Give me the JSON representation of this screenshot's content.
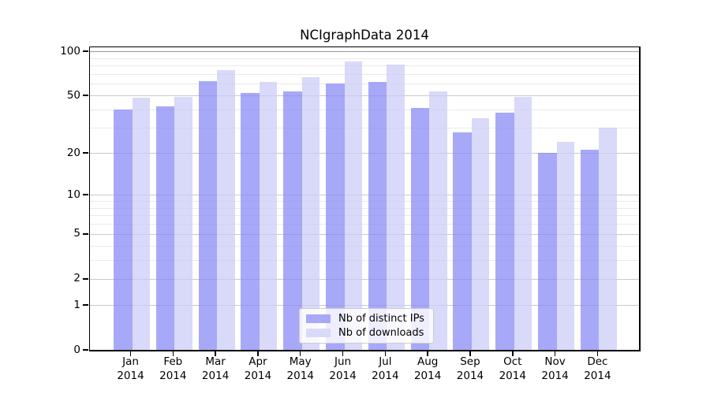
{
  "chart_data": {
    "type": "bar",
    "title": "NCIgraphData 2014",
    "categories": [
      "Jan",
      "Feb",
      "Mar",
      "Apr",
      "May",
      "Jun",
      "Jul",
      "Aug",
      "Sep",
      "Oct",
      "Nov",
      "Dec"
    ],
    "year_label": "2014",
    "series": [
      {
        "name": "Nb of distinct IPs",
        "values": [
          40,
          42,
          63,
          52,
          53,
          60,
          62,
          41,
          28,
          38,
          20,
          21
        ]
      },
      {
        "name": "Nb of downloads",
        "values": [
          48,
          49,
          74,
          62,
          67,
          85,
          81,
          53,
          35,
          49,
          24,
          30
        ]
      }
    ],
    "yscale": "log1p",
    "ylim": [
      0,
      106
    ],
    "y_major_ticks": [
      100,
      50,
      20,
      10,
      5,
      2,
      1,
      0
    ],
    "y_minor_gridlines": [
      3,
      4,
      6,
      7,
      8,
      9,
      30,
      40,
      60,
      70,
      80,
      90
    ],
    "grid": true,
    "legend_position": "lower center"
  },
  "colors": {
    "bar_distinct_ips": "rgba(134,134,245,0.72)",
    "bar_downloads": "rgba(202,202,247,0.72)",
    "legend_swatch_ips": "#a8a8f8",
    "legend_swatch_downloads": "#d9d9f9",
    "gridline_major": "#c9c9c9",
    "gridline_top": "#999999",
    "gridline_minor": "#eaeaea",
    "axis": "#000000",
    "background": "#ffffff"
  }
}
